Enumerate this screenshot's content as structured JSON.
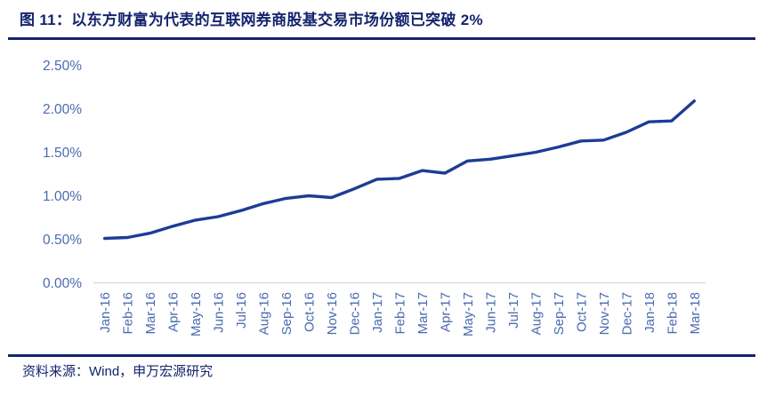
{
  "header": {
    "title": "图 11：以东方财富为代表的互联网券商股基交易市场份额已突破 2%"
  },
  "footer": {
    "source": "资料来源：Wind，申万宏源研究"
  },
  "colors": {
    "heading_navy": "#14246e",
    "divider_navy": "#14246e",
    "line_blue": "#1e3c96",
    "axis_label_blue": "#4a6ab0",
    "axis_line_gray": "#d9d9d9",
    "background": "#ffffff"
  },
  "chart_data": {
    "type": "line",
    "title": "互联网券商股基交易市场份额",
    "xlabel": "",
    "ylabel": "",
    "unit": "%",
    "grid": false,
    "legend": "none",
    "x_label_rotation": -90,
    "ylim": [
      0,
      2.5
    ],
    "yticks": [
      "0.00%",
      "0.50%",
      "1.00%",
      "1.50%",
      "2.00%",
      "2.50%"
    ],
    "ytick_values": [
      0,
      0.5,
      1.0,
      1.5,
      2.0,
      2.5
    ],
    "categories": [
      "Jan-16",
      "Feb-16",
      "Mar-16",
      "Apr-16",
      "May-16",
      "Jun-16",
      "Jul-16",
      "Aug-16",
      "Sep-16",
      "Oct-16",
      "Nov-16",
      "Dec-16",
      "Jan-17",
      "Feb-17",
      "Mar-17",
      "Apr-17",
      "May-17",
      "Jun-17",
      "Jul-17",
      "Aug-17",
      "Sep-17",
      "Oct-17",
      "Nov-17",
      "Dec-17",
      "Jan-18",
      "Feb-18",
      "Mar-18"
    ],
    "series": [
      {
        "name": "股基交易市场份额",
        "values": [
          0.51,
          0.52,
          0.57,
          0.65,
          0.72,
          0.76,
          0.83,
          0.91,
          0.97,
          1.0,
          0.98,
          1.08,
          1.19,
          1.2,
          1.29,
          1.26,
          1.4,
          1.42,
          1.46,
          1.5,
          1.56,
          1.63,
          1.64,
          1.73,
          1.85,
          1.86,
          2.09
        ]
      }
    ]
  }
}
